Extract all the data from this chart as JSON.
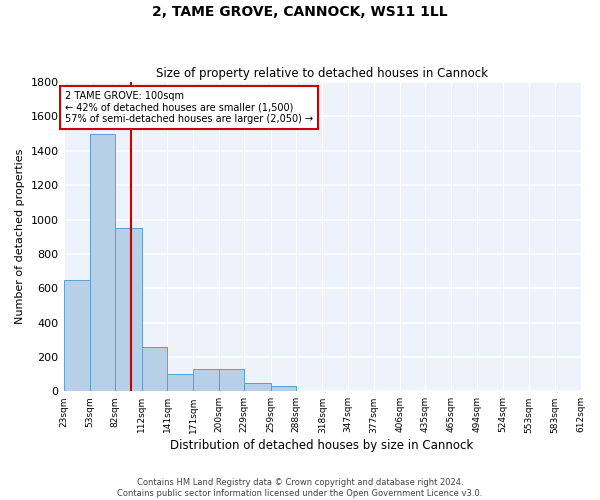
{
  "title1": "2, TAME GROVE, CANNOCK, WS11 1LL",
  "title2": "Size of property relative to detached houses in Cannock",
  "xlabel": "Distribution of detached houses by size in Cannock",
  "ylabel": "Number of detached properties",
  "bin_edges": [
    23,
    53,
    82,
    112,
    141,
    171,
    200,
    229,
    259,
    288,
    318,
    347,
    377,
    406,
    435,
    465,
    494,
    524,
    553,
    583,
    612
  ],
  "bar_heights": [
    650,
    1500,
    950,
    260,
    100,
    130,
    130,
    50,
    30,
    0,
    0,
    0,
    0,
    0,
    0,
    0,
    0,
    0,
    0,
    0
  ],
  "bar_color": "#b8cfe8",
  "bar_edgecolor": "#5a9fd4",
  "property_size": 100,
  "annotation_line1": "2 TAME GROVE: 100sqm",
  "annotation_line2": "← 42% of detached houses are smaller (1,500)",
  "annotation_line3": "57% of semi-detached houses are larger (2,050) →",
  "redline_color": "#cc0000",
  "annotation_box_color": "#cc0000",
  "ylim": [
    0,
    1800
  ],
  "footer1": "Contains HM Land Registry data © Crown copyright and database right 2024.",
  "footer2": "Contains public sector information licensed under the Open Government Licence v3.0.",
  "background_color": "#eef2fa",
  "grid_color": "#ffffff",
  "tick_labels": [
    "23sqm",
    "53sqm",
    "82sqm",
    "112sqm",
    "141sqm",
    "171sqm",
    "200sqm",
    "229sqm",
    "259sqm",
    "288sqm",
    "318sqm",
    "347sqm",
    "377sqm",
    "406sqm",
    "435sqm",
    "465sqm",
    "494sqm",
    "524sqm",
    "553sqm",
    "583sqm",
    "612sqm"
  ]
}
